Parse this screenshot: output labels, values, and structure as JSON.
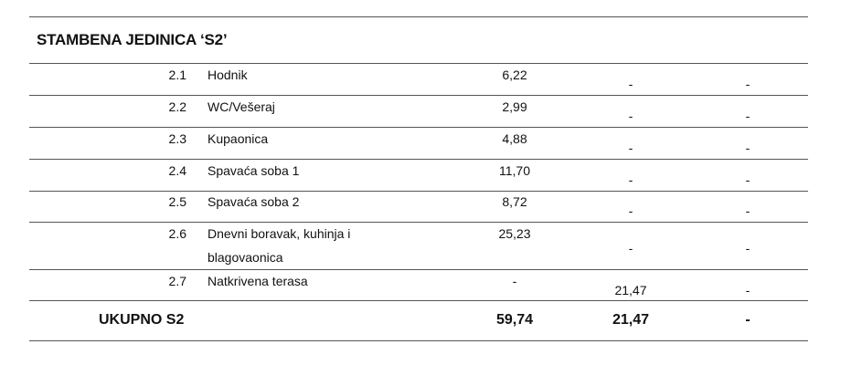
{
  "title": "STAMBENA JEDINICA  ‘S2’",
  "rows": [
    {
      "num": "2.1",
      "name": "Hodnik",
      "col1": "6,22",
      "col2": "-",
      "col3": "-"
    },
    {
      "num": "2.2",
      "name": "WC/Vešeraj",
      "col1": "2,99",
      "col2": "-",
      "col3": "-"
    },
    {
      "num": "2.3",
      "name": "Kupaonica",
      "col1": "4,88",
      "col2": "-",
      "col3": "-"
    },
    {
      "num": "2.4",
      "name": "Spavaća soba 1",
      "col1": "11,70",
      "col2": "-",
      "col3": "-"
    },
    {
      "num": "2.5",
      "name": "Spavaća soba 2",
      "col1": "8,72",
      "col2": "-",
      "col3": "-"
    },
    {
      "num": "2.6",
      "name": "Dnevni boravak, kuhinja i",
      "name2": "blagovaonica",
      "col1": "25,23",
      "col2": "-",
      "col3": "-"
    },
    {
      "num": "2.7",
      "name": "Natkrivena terasa",
      "col1": "-",
      "col2": "21,47",
      "col3": "-"
    }
  ],
  "total": {
    "label": "UKUPNO S2",
    "col1": "59,74",
    "col2": "21,47",
    "col3": "-"
  }
}
